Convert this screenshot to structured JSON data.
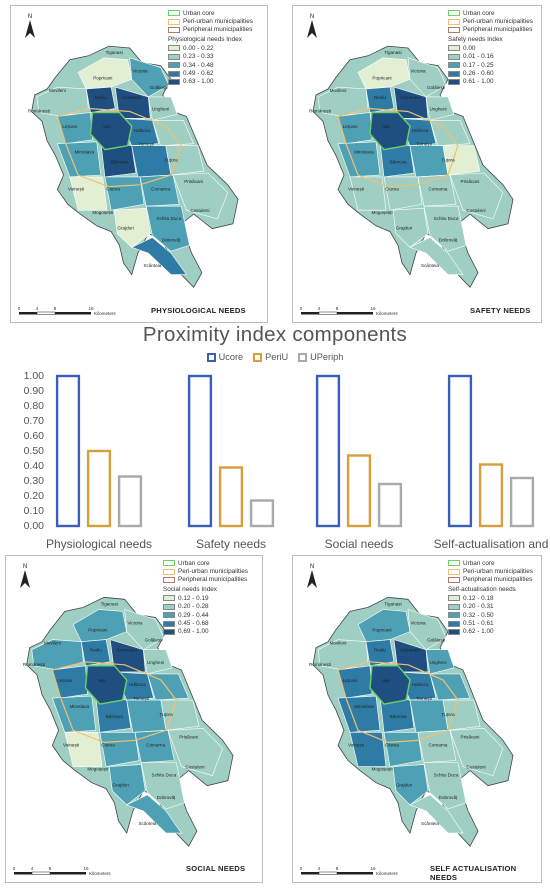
{
  "legend_common": {
    "urban": "Urban core",
    "peri": "Peri-urban municipalities",
    "periph": "Peripheral municipalities",
    "colors": {
      "urban": "#6ad068",
      "peri": "#f0c070",
      "periph": "#b07a6e"
    }
  },
  "ramp_colors": [
    "#e3efd2",
    "#9fcfc2",
    "#4ea1b5",
    "#2e7ca6",
    "#1e4f80"
  ],
  "maps": [
    {
      "id": "physiological",
      "title": "PHYSIOLOGICAL NEEDS",
      "index_title": "Physiological needs Index",
      "classes": [
        "0.00 - 0.22",
        "0.23 - 0.33",
        "0.34 - 0.48",
        "0.49 - 0.62",
        "0.63 - 1.00"
      ]
    },
    {
      "id": "safety",
      "title": "SAFETY  NEEDS",
      "index_title": "Safety needs Index",
      "classes": [
        "0.00",
        "0.01 - 0.16",
        "0.17 - 0.25",
        "0.26 - 0.60",
        "0.61 - 1.00"
      ]
    },
    {
      "id": "social",
      "title": "SOCIAL NEEDS",
      "index_title": "Social needs Index",
      "classes": [
        "0.12 - 0.19",
        "0.20 - 0.28",
        "0.29 - 0.44",
        "0.45 - 0.68",
        "0.69 - 1.00"
      ]
    },
    {
      "id": "selfact",
      "title": "SELF ACTUALISATION NEEDS",
      "index_title": "Self-actualisation needs",
      "classes": [
        "0.12 - 0.18",
        "0.20 - 0.31",
        "0.32 - 0.50",
        "0.51 - 0.61",
        "0.62 - 1.00"
      ]
    }
  ],
  "scale": {
    "ticks": [
      "0",
      "4",
      "8",
      "16"
    ],
    "unit": "Kilometers"
  },
  "north_label": "N",
  "place_names": [
    "Tiganasi",
    "Movileni",
    "Românești",
    "Popricani",
    "Victoria",
    "Golăiești",
    "Rediu",
    "Aroneanu",
    "Lețcani",
    "Iași",
    "Holboca",
    "Ungheni",
    "Miroslava",
    "Tomești",
    "Țuțora",
    "Bârnova",
    "Ciurea",
    "Comarna",
    "Prisăcani",
    "Voinești",
    "Mogoșești",
    "Schitu Duca",
    "Costuleni",
    "Grajduri",
    "Dobrovăț",
    "Scânteia"
  ],
  "chart_data": {
    "type": "bar",
    "title": "Proximity index components",
    "categories": [
      "Physiological needs",
      "Safety needs",
      "Social needs",
      "Self-actualisation and"
    ],
    "series": [
      {
        "name": "Ucore",
        "color": "#3a5fb8",
        "values": [
          1.0,
          1.0,
          1.0,
          1.0
        ]
      },
      {
        "name": "PeriU",
        "color": "#d79e3c",
        "values": [
          0.5,
          0.39,
          0.47,
          0.41
        ]
      },
      {
        "name": "UPeriph",
        "color": "#a9a9a9",
        "values": [
          0.33,
          0.17,
          0.28,
          0.32
        ]
      }
    ],
    "ylim": [
      0,
      1.0
    ],
    "yticks": [
      "0.00",
      "0.10",
      "0.20",
      "0.30",
      "0.40",
      "0.50",
      "0.60",
      "0.70",
      "0.80",
      "0.90",
      "1.00"
    ]
  }
}
